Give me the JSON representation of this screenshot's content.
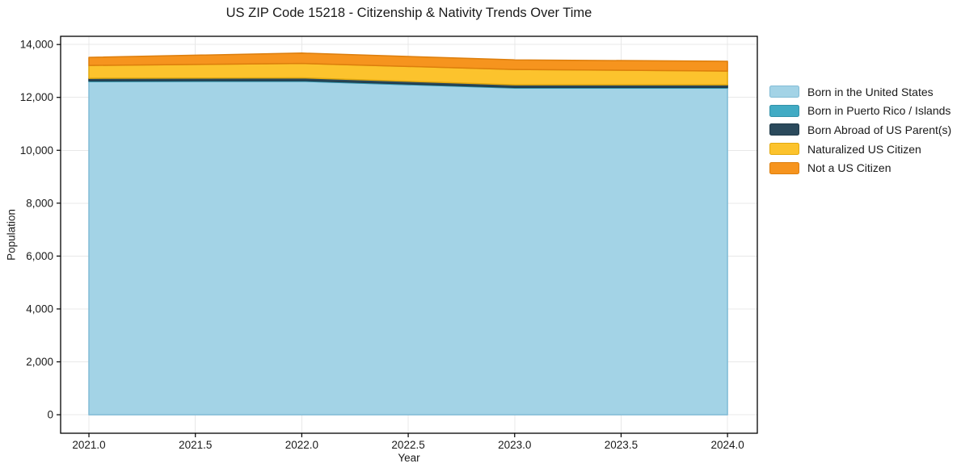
{
  "chart_data": {
    "type": "area",
    "stacked": true,
    "title": "US ZIP Code 15218 - Citizenship & Nativity Trends Over Time",
    "xlabel": "Year",
    "ylabel": "Population",
    "x": [
      2021.0,
      2022.0,
      2023.0,
      2024.0
    ],
    "series": [
      {
        "name": "Born in the United States",
        "color": "#a3d3e6",
        "edge": "#82bcd6",
        "values": [
          12600,
          12610,
          12350,
          12350
        ]
      },
      {
        "name": "Born in Puerto Rico / Islands",
        "color": "#41abc4",
        "edge": "#3292a9",
        "values": [
          30,
          30,
          30,
          30
        ]
      },
      {
        "name": "Born Abroad of US Parent(s)",
        "color": "#2b4a5c",
        "edge": "#203a49",
        "values": [
          90,
          100,
          95,
          95
        ]
      },
      {
        "name": "Naturalized US Citizen",
        "color": "#fcc32d",
        "edge": "#e2a90f",
        "values": [
          490,
          545,
          580,
          520
        ]
      },
      {
        "name": "Not a US Citizen",
        "color": "#f6941e",
        "edge": "#dd7e0c",
        "values": [
          305,
          390,
          365,
          370
        ]
      }
    ],
    "xlim": [
      2020.867,
      2024.14
    ],
    "ylim": [
      -700,
      14310
    ],
    "xticks": [
      2021.0,
      2021.5,
      2022.0,
      2022.5,
      2023.0,
      2023.5,
      2024.0
    ],
    "xtick_labels": [
      "2021.0",
      "2021.5",
      "2022.0",
      "2022.5",
      "2023.0",
      "2023.5",
      "2024.0"
    ],
    "yticks": [
      0,
      2000,
      4000,
      6000,
      8000,
      10000,
      12000,
      14000
    ],
    "ytick_labels": [
      "0",
      "2,000",
      "4,000",
      "6,000",
      "8,000",
      "10,000",
      "12,000",
      "14,000"
    ],
    "grid": true,
    "grid_color": "#e8e8e8",
    "axis_color": "#000000",
    "text_color": "#1a1a1a",
    "plot_background": "#ffffff",
    "legend_position": "right-outside"
  }
}
